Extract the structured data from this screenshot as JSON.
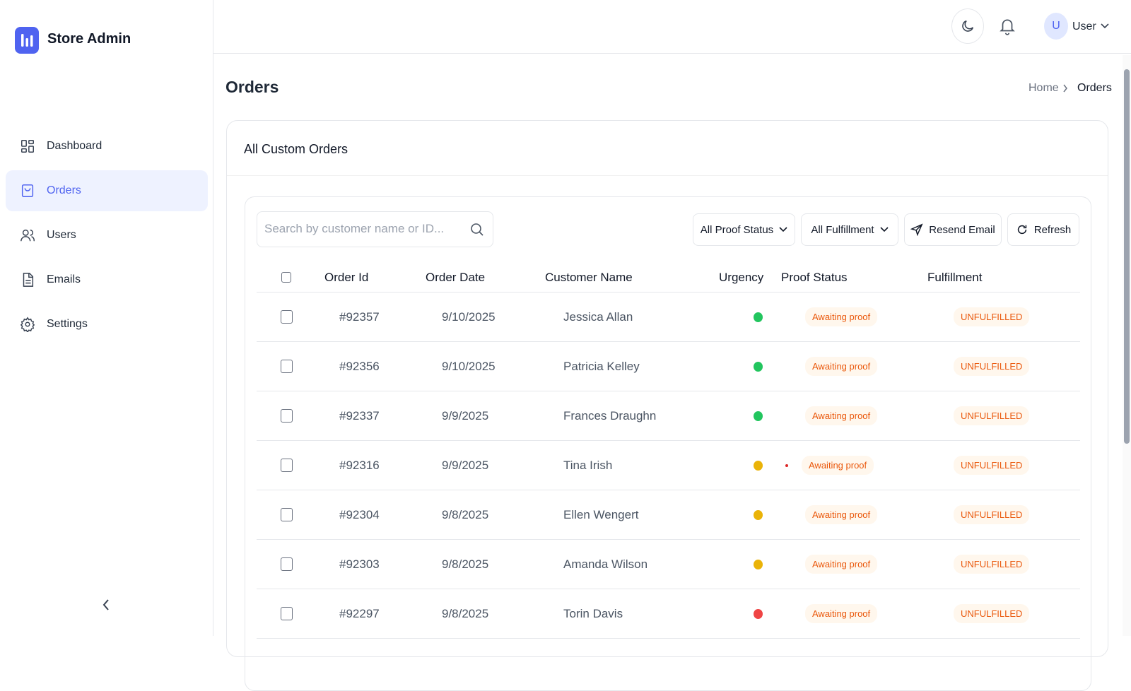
{
  "sidebar": {
    "brand": "Store Admin",
    "nav": [
      "Dashboard",
      "Orders",
      "Users",
      "Emails",
      "Settings"
    ]
  },
  "header": {
    "avatar": "U",
    "user": "User"
  },
  "page": {
    "title": "Orders",
    "breadcrumb": [
      "Home",
      "Orders"
    ]
  },
  "card": {
    "title": "All Custom Orders"
  },
  "toolbar": {
    "search_placeholder": "Search by customer name or ID...",
    "filters": [
      "All Proof Status",
      "All Fulfillment"
    ],
    "buttons": [
      "Resend Email",
      "Refresh"
    ]
  },
  "table": {
    "columns": [
      "Order Id",
      "Order Date",
      "Customer Name",
      "Urgency",
      "Proof Status",
      "Fulfillment"
    ],
    "rows": [
      {
        "order_id": "#92357",
        "date": "9/10/2025",
        "customer": "Jessica Allan",
        "urgency": "#22c55e",
        "proof_alert": false,
        "proof_status": "Awaiting proof",
        "fulfillment": "UNFULFILLED"
      },
      {
        "order_id": "#92356",
        "date": "9/10/2025",
        "customer": "Patricia Kelley",
        "urgency": "#22c55e",
        "proof_alert": false,
        "proof_status": "Awaiting proof",
        "fulfillment": "UNFULFILLED"
      },
      {
        "order_id": "#92337",
        "date": "9/9/2025",
        "customer": "Frances Draughn",
        "urgency": "#22c55e",
        "proof_alert": false,
        "proof_status": "Awaiting proof",
        "fulfillment": "UNFULFILLED"
      },
      {
        "order_id": "#92316",
        "date": "9/9/2025",
        "customer": "Tina Irish",
        "urgency": "#eab308",
        "proof_alert": true,
        "proof_status": "Awaiting proof",
        "fulfillment": "UNFULFILLED"
      },
      {
        "order_id": "#92304",
        "date": "9/8/2025",
        "customer": "Ellen Wengert",
        "urgency": "#eab308",
        "proof_alert": false,
        "proof_status": "Awaiting proof",
        "fulfillment": "UNFULFILLED"
      },
      {
        "order_id": "#92303",
        "date": "9/8/2025",
        "customer": "Amanda Wilson",
        "urgency": "#eab308",
        "proof_alert": false,
        "proof_status": "Awaiting proof",
        "fulfillment": "UNFULFILLED"
      },
      {
        "order_id": "#92297",
        "date": "9/8/2025",
        "customer": "Torin Davis",
        "urgency": "#ef4444",
        "proof_alert": false,
        "proof_status": "Awaiting proof",
        "fulfillment": "UNFULFILLED"
      }
    ]
  }
}
